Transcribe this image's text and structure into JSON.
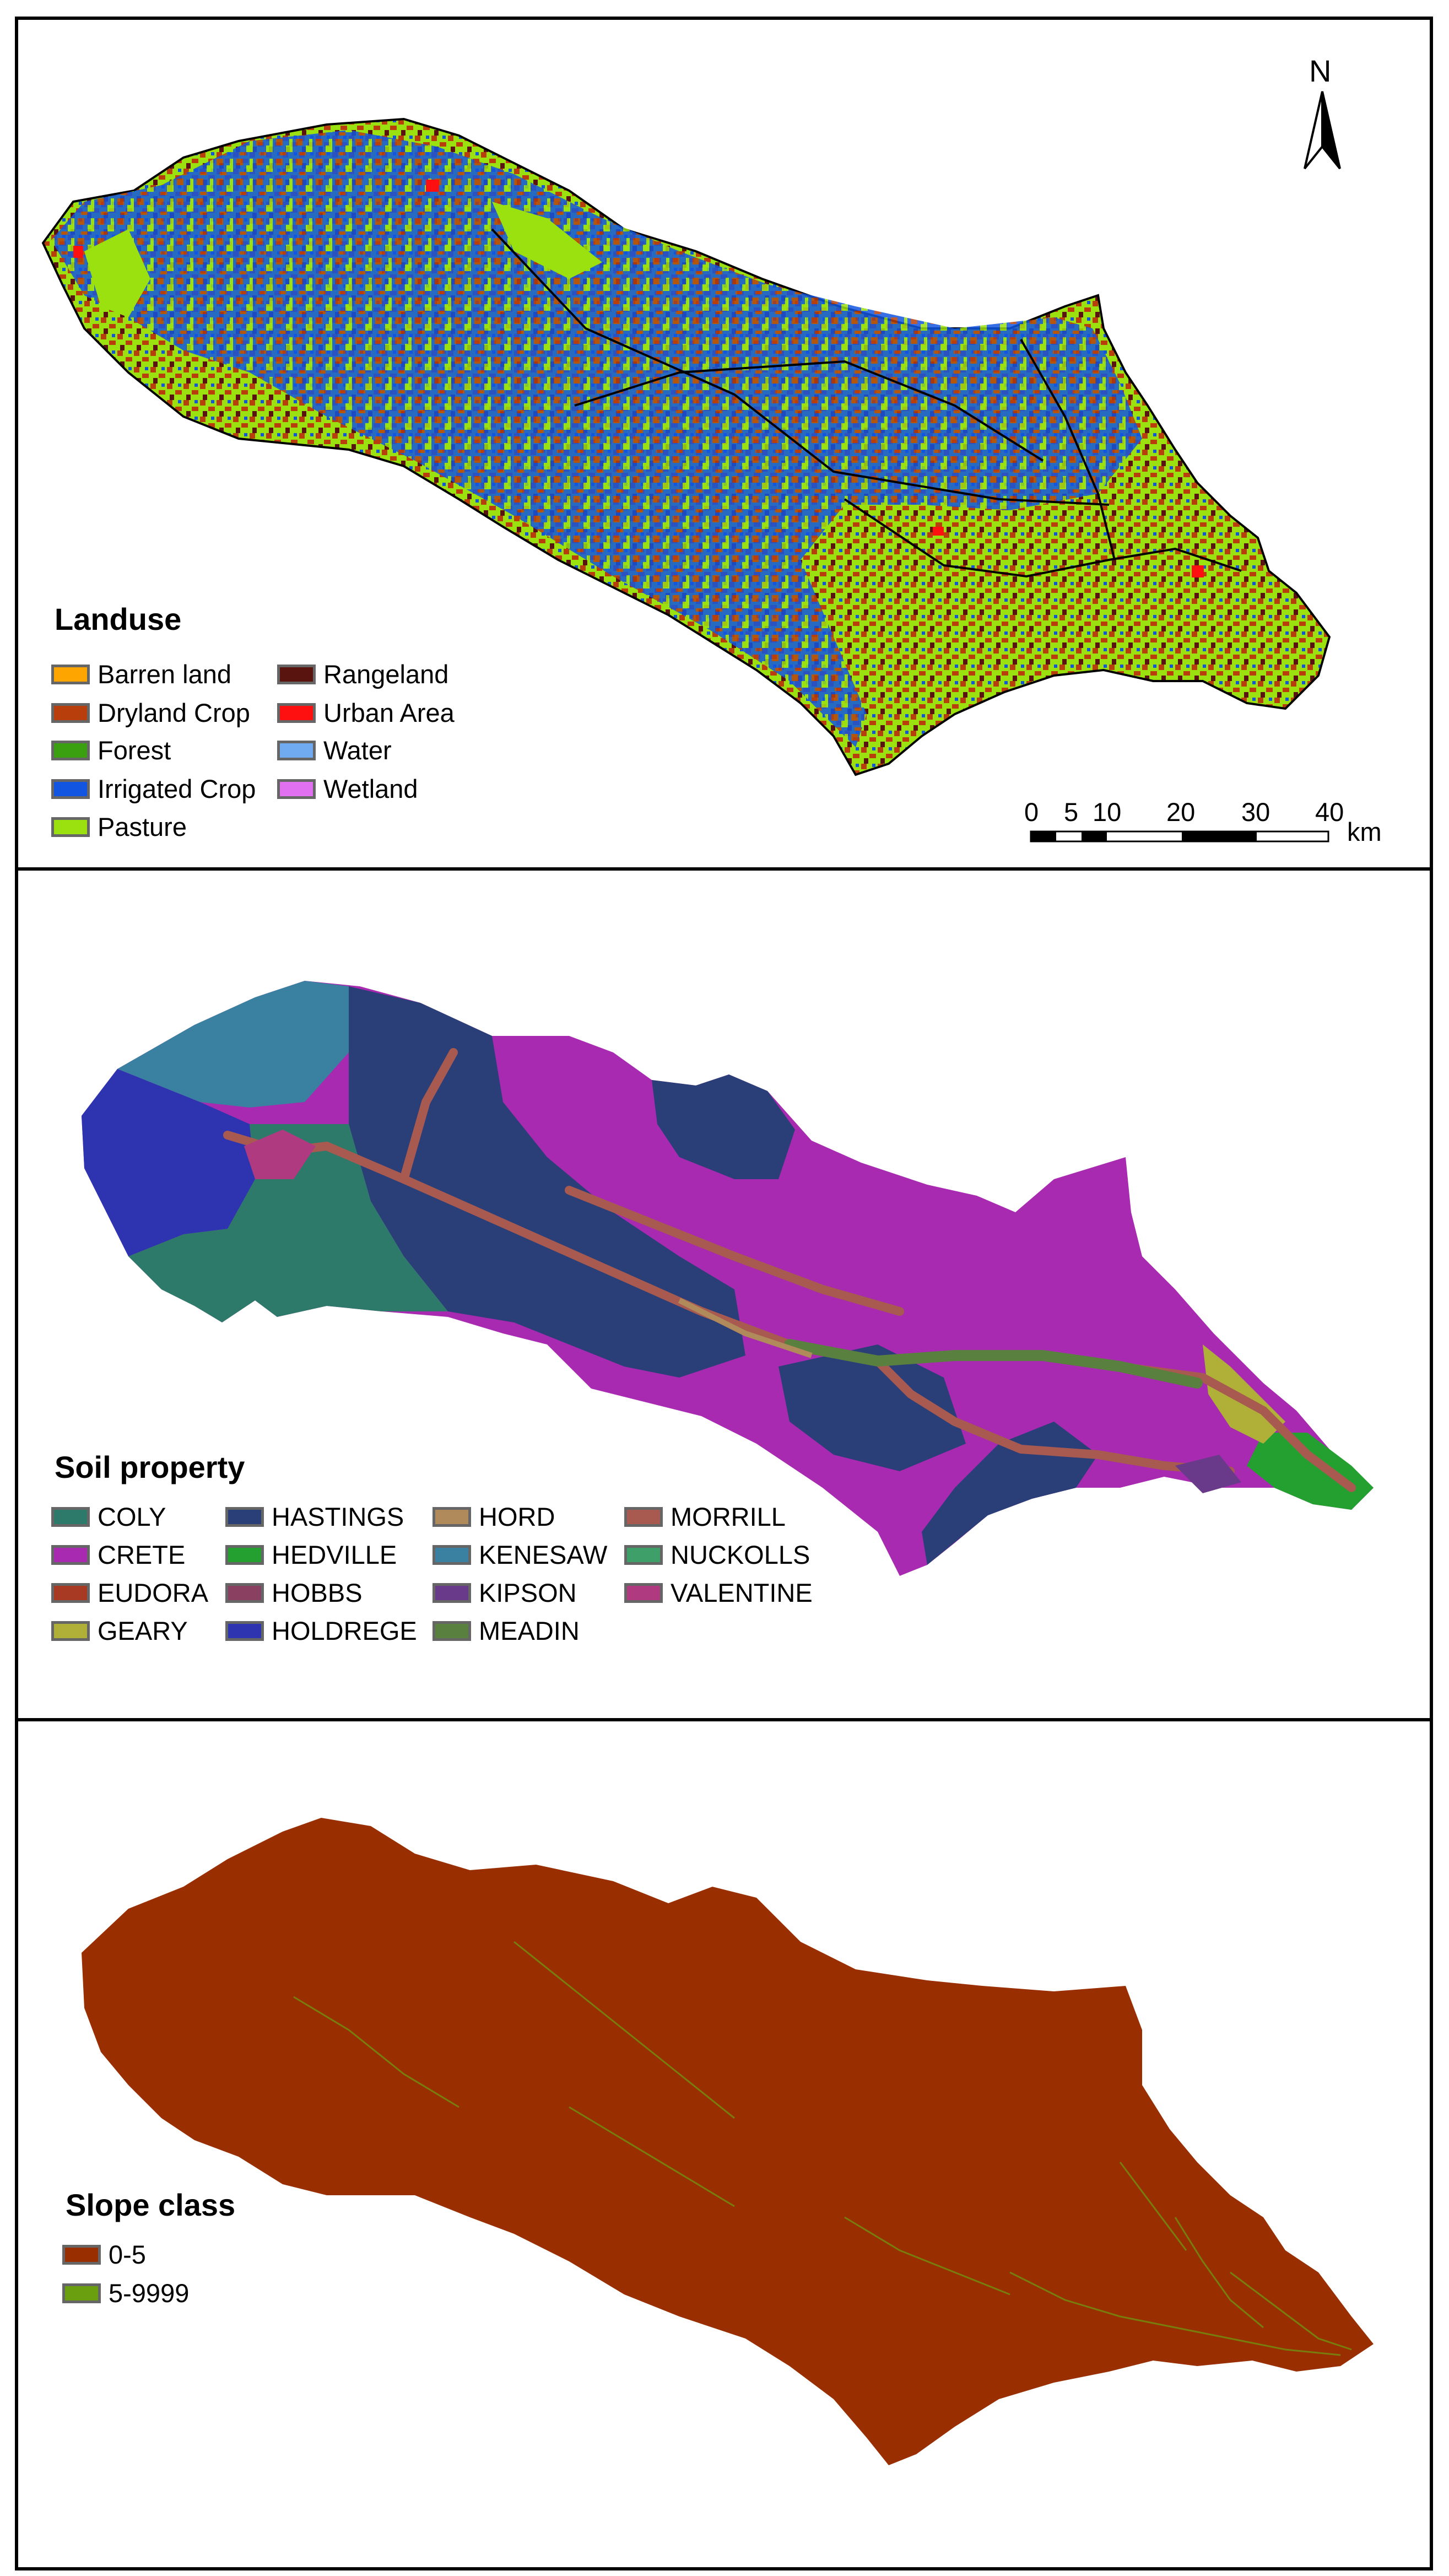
{
  "landuse": {
    "title": "Landuse",
    "items": [
      {
        "label": "Barren land",
        "color": "#ffa500"
      },
      {
        "label": "Dryland Crop",
        "color": "#b83e0b"
      },
      {
        "label": "Forest",
        "color": "#3aa010"
      },
      {
        "label": "Irrigated Crop",
        "color": "#1155e0"
      },
      {
        "label": "Pasture",
        "color": "#9be00f"
      },
      {
        "label": "Rangeland",
        "color": "#5a1410"
      },
      {
        "label": "Urban Area",
        "color": "#ff1010"
      },
      {
        "label": "Water",
        "color": "#70aaf0"
      },
      {
        "label": "Wetland",
        "color": "#e070f0"
      }
    ],
    "north": "N",
    "scale": {
      "ticks": [
        "0",
        "5",
        "10",
        "20",
        "30",
        "40"
      ],
      "unit": "km"
    }
  },
  "soil": {
    "title": "Soil property",
    "items": [
      {
        "label": "COLY",
        "color": "#2e7a6a"
      },
      {
        "label": "CRETE",
        "color": "#a82ab0"
      },
      {
        "label": "EUDORA",
        "color": "#a83a24"
      },
      {
        "label": "GEARY",
        "color": "#b0b038"
      },
      {
        "label": "HASTINGS",
        "color": "#2a3e78"
      },
      {
        "label": "HEDVILLE",
        "color": "#24a030"
      },
      {
        "label": "HOBBS",
        "color": "#8a4060"
      },
      {
        "label": "HOLDREGE",
        "color": "#2e34b0"
      },
      {
        "label": "HORD",
        "color": "#b08a5a"
      },
      {
        "label": "KENESAW",
        "color": "#3a80a0"
      },
      {
        "label": "KIPSON",
        "color": "#6a3a8a"
      },
      {
        "label": "MEADIN",
        "color": "#5a8040"
      },
      {
        "label": "MORRILL",
        "color": "#a85a50"
      },
      {
        "label": "NUCKOLLS",
        "color": "#3ea068"
      },
      {
        "label": "VALENTINE",
        "color": "#b03a80"
      }
    ]
  },
  "slope": {
    "title": "Slope class",
    "items": [
      {
        "label": "0-5",
        "color": "#992e00"
      },
      {
        "label": "5-9999",
        "color": "#6aa010"
      }
    ]
  }
}
